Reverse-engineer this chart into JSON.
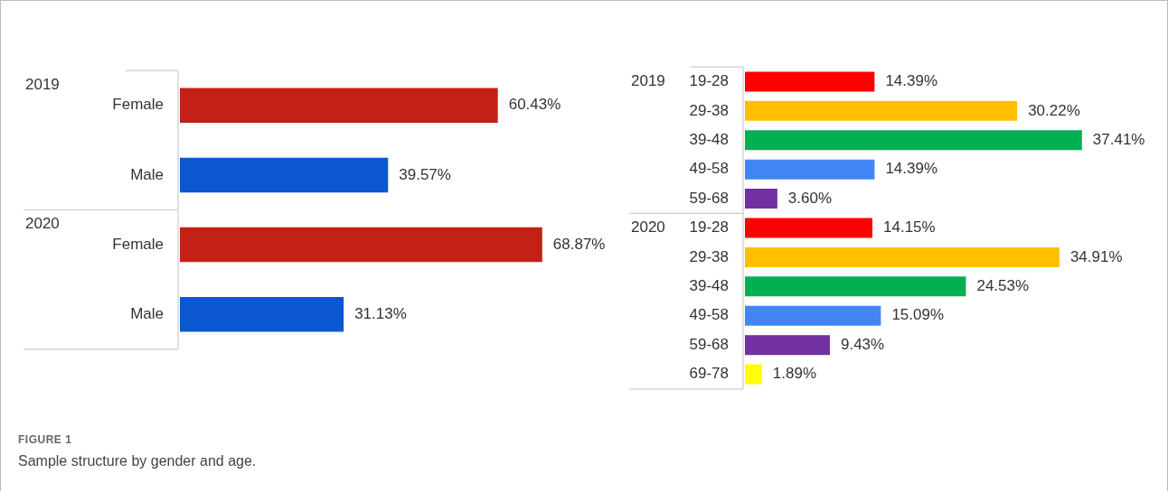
{
  "chart_data": [
    {
      "type": "bar",
      "orientation": "horizontal",
      "tick_labels": "y",
      "legend": false,
      "categories": [
        "Female",
        "Male",
        "Female",
        "Male"
      ],
      "values": [
        60.43,
        39.57,
        68.87,
        31.13
      ],
      "colors": [
        "#c32117",
        "#0b57d0",
        "#c32117",
        "#0b57d0"
      ],
      "value_labels": [
        "60.43%",
        "39.57%",
        "68.87%",
        "31.13%"
      ],
      "annotations": [
        "2019",
        "2020",
        "FIGURE 1",
        "Sample structure by gender and age."
      ]
    },
    {
      "type": "bar",
      "orientation": "horizontal",
      "tick_labels": "y",
      "legend": false,
      "categories": [
        "19-28",
        "29-38",
        "39-48",
        "49-58",
        "59-68",
        "19-28",
        "29-38",
        "39-48",
        "49-58",
        "59-68",
        "69-78"
      ],
      "values": [
        14.39,
        30.22,
        37.41,
        14.39,
        3.6,
        14.15,
        34.91,
        24.53,
        15.09,
        9.43,
        1.89
      ],
      "colors": [
        "#ff0000",
        "#ffc000",
        "#00b050",
        "#4285f4",
        "#7030a0",
        "#ff0000",
        "#ffc000",
        "#00b050",
        "#4285f4",
        "#7030a0",
        "#ffff00"
      ],
      "value_labels": [
        "14.39%",
        "30.22%",
        "37.41%",
        "14.39%",
        "3.60%",
        "14.15%",
        "34.91%",
        "24.53%",
        "15.09%",
        "9.43%",
        "1.89%"
      ],
      "annotations": [
        "2019",
        "2020"
      ]
    }
  ]
}
